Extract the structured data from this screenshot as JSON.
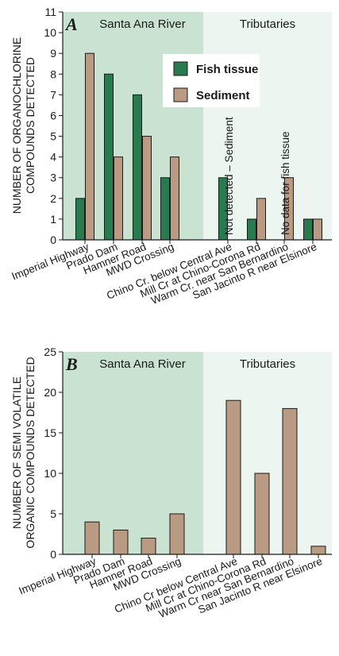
{
  "colors": {
    "fish_tissue": "#2a7a4f",
    "sediment": "#b99a82",
    "santa_ana_bg": "#c9e2d2",
    "tributaries_bg": "#ecf5ef",
    "bar_stroke": "#1a1a1a"
  },
  "chart_data": [
    {
      "panel": "A",
      "type": "bar",
      "ylabel_lines": [
        "NUMBER OF ORGANOCHLORINE",
        "COMPOUNDS DETECTED"
      ],
      "ylim": [
        0,
        11
      ],
      "yticks": [
        0,
        1,
        2,
        3,
        4,
        5,
        6,
        7,
        8,
        9,
        10,
        11
      ],
      "regions": [
        {
          "label": "Santa Ana River",
          "categories": [
            0,
            1,
            2,
            3
          ]
        },
        {
          "label": "Tributaries",
          "categories": [
            4,
            5,
            6,
            7
          ]
        }
      ],
      "categories": [
        "Imperial Highway",
        "Prado Dam",
        "Hamner Road",
        "MWD Crossing",
        "Chino Cr. below Central Ave",
        "Mill Cr at Chino-Corona Rd",
        "Warm Cr. near San Bernardino",
        "San Jacinto R near Elsinore"
      ],
      "legend": [
        "Fish tissue",
        "Sediment"
      ],
      "series": [
        {
          "name": "Fish tissue",
          "color_key": "fish_tissue",
          "values": [
            2,
            8,
            7,
            3,
            3,
            1,
            null,
            1
          ]
        },
        {
          "name": "Sediment",
          "color_key": "sediment",
          "values": [
            9,
            4,
            5,
            4,
            null,
            2,
            3,
            1
          ]
        }
      ],
      "annotations": [
        {
          "text": "Not detected – Sediment",
          "category_index": 4
        },
        {
          "text": "No data for fish tissue",
          "category_index": 6
        }
      ],
      "legend_position": "top-center"
    },
    {
      "panel": "B",
      "type": "bar",
      "ylabel_lines": [
        "NUMBER OF SEMI VOLATILE",
        "ORGANIC COMPOUNDS DETECTED"
      ],
      "ylim": [
        0,
        25
      ],
      "yticks": [
        0,
        5,
        10,
        15,
        20,
        25
      ],
      "regions": [
        {
          "label": "Santa Ana River",
          "categories": [
            0,
            1,
            2,
            3
          ]
        },
        {
          "label": "Tributaries",
          "categories": [
            4,
            5,
            6,
            7
          ]
        }
      ],
      "categories": [
        "Imperial Highway",
        "Prado Dam",
        "Hamner Road",
        "MWD Crossing",
        "Chino Cr below Central Ave",
        "Mill Cr at Chino-Corona Rd",
        "Warm Cr near San Bernardino",
        "San Jacinto R near Elsinore"
      ],
      "series": [
        {
          "name": "",
          "color_key": "sediment",
          "values": [
            4,
            3,
            2,
            5,
            19,
            10,
            18,
            1
          ]
        }
      ]
    }
  ]
}
